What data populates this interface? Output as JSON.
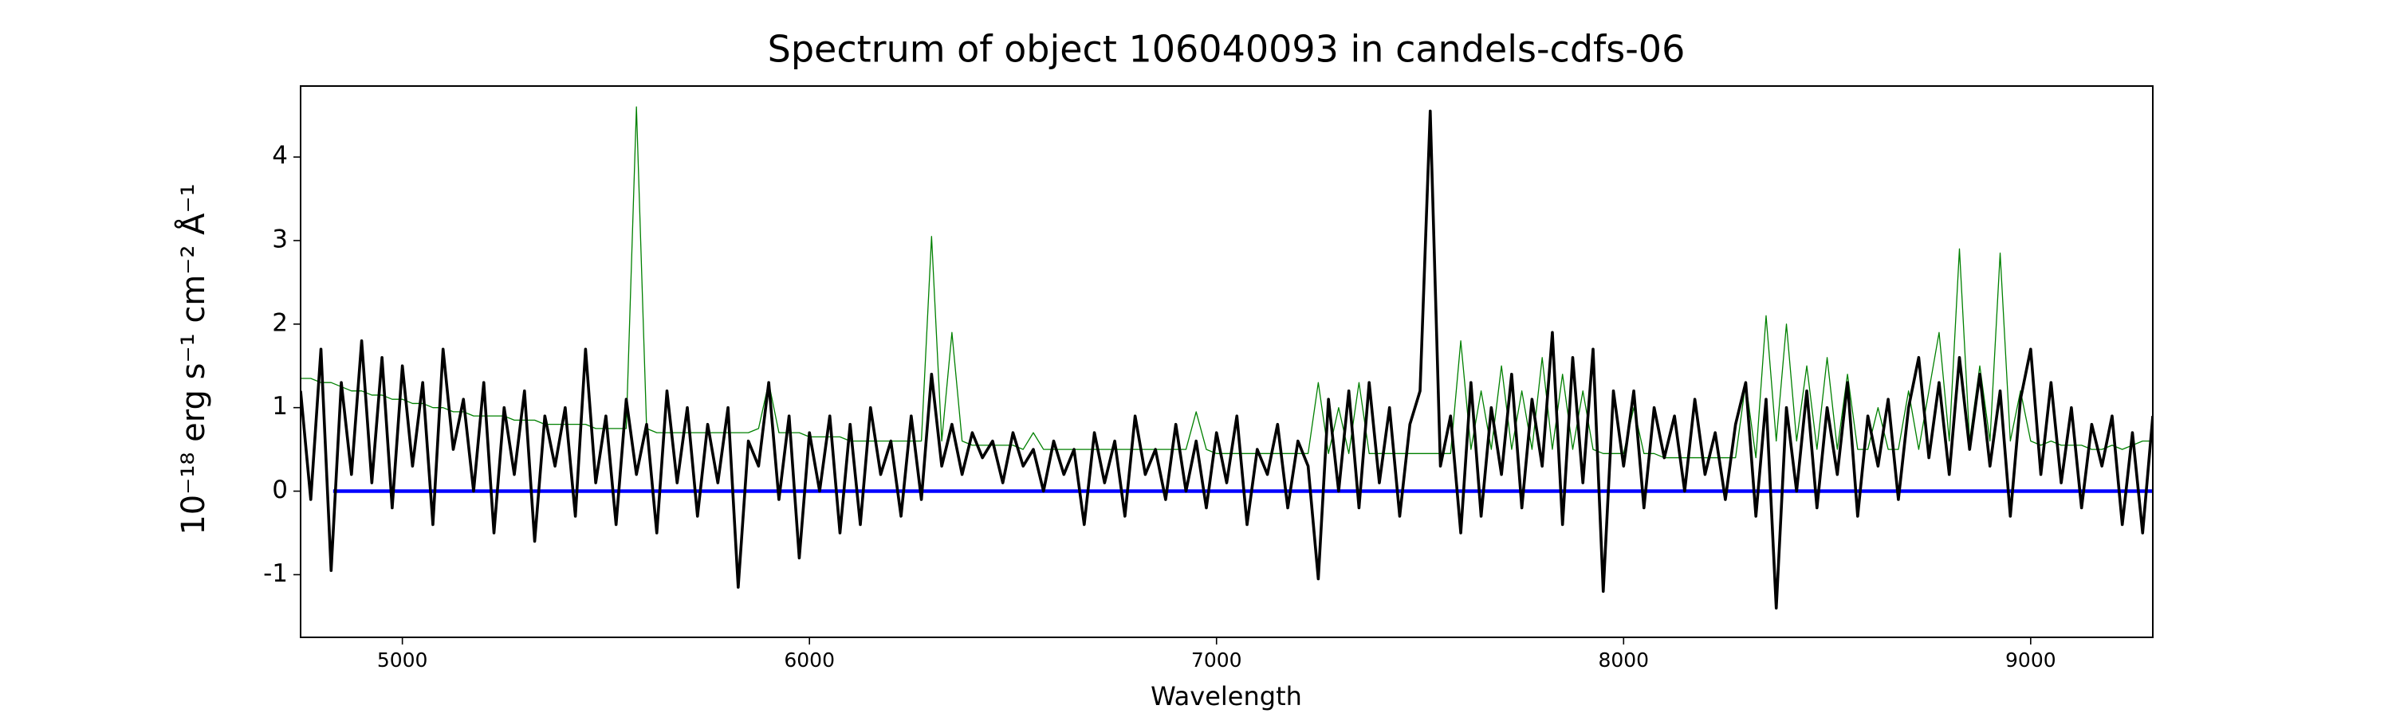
{
  "chart_data": {
    "type": "line",
    "title": "Spectrum of object 106040093 in candels-cdfs-06",
    "xlabel": "Wavelength",
    "ylabel": "10⁻¹⁸ erg s⁻¹ cm⁻² Å⁻¹",
    "xlim": [
      4750,
      9300
    ],
    "xticks": [
      5000,
      6000,
      7000,
      8000,
      9000
    ],
    "ylim": [
      -1.75,
      4.85
    ],
    "yticks": [
      -1,
      0,
      1,
      2,
      3,
      4
    ],
    "series": [
      {
        "color": "#008000",
        "x": [
          4750,
          4775,
          4800,
          4825,
          4850,
          4875,
          4900,
          4925,
          4950,
          4975,
          5000,
          5025,
          5050,
          5075,
          5100,
          5125,
          5150,
          5175,
          5200,
          5225,
          5250,
          5275,
          5300,
          5325,
          5350,
          5375,
          5400,
          5425,
          5450,
          5475,
          5500,
          5525,
          5550,
          5575,
          5600,
          5625,
          5650,
          5675,
          5700,
          5725,
          5750,
          5775,
          5800,
          5825,
          5850,
          5875,
          5900,
          5925,
          5950,
          5975,
          6000,
          6025,
          6050,
          6075,
          6100,
          6125,
          6150,
          6175,
          6200,
          6225,
          6250,
          6275,
          6300,
          6325,
          6350,
          6375,
          6400,
          6425,
          6450,
          6475,
          6500,
          6525,
          6550,
          6575,
          6600,
          6625,
          6650,
          6675,
          6700,
          6725,
          6750,
          6775,
          6800,
          6825,
          6850,
          6875,
          6900,
          6925,
          6950,
          6975,
          7000,
          7025,
          7050,
          7075,
          7100,
          7125,
          7150,
          7175,
          7200,
          7225,
          7250,
          7275,
          7300,
          7325,
          7350,
          7375,
          7400,
          7425,
          7450,
          7475,
          7500,
          7525,
          7550,
          7575,
          7600,
          7625,
          7650,
          7675,
          7700,
          7725,
          7750,
          7775,
          7800,
          7825,
          7850,
          7875,
          7900,
          7925,
          7950,
          7975,
          8000,
          8025,
          8050,
          8075,
          8100,
          8125,
          8150,
          8175,
          8200,
          8225,
          8250,
          8275,
          8300,
          8325,
          8350,
          8375,
          8400,
          8425,
          8450,
          8475,
          8500,
          8525,
          8550,
          8575,
          8600,
          8625,
          8650,
          8675,
          8700,
          8725,
          8750,
          8775,
          8800,
          8825,
          8850,
          8875,
          8900,
          8925,
          8950,
          8975,
          9000,
          9025,
          9050,
          9075,
          9100,
          9125,
          9150,
          9175,
          9200,
          9225,
          9250,
          9275,
          9300
        ],
        "values": [
          1.35,
          1.35,
          1.3,
          1.3,
          1.25,
          1.2,
          1.2,
          1.15,
          1.15,
          1.1,
          1.1,
          1.05,
          1.05,
          1.0,
          1.0,
          0.95,
          0.95,
          0.9,
          0.9,
          0.9,
          0.9,
          0.85,
          0.85,
          0.85,
          0.8,
          0.8,
          0.8,
          0.8,
          0.8,
          0.75,
          0.75,
          0.75,
          0.75,
          4.6,
          0.75,
          0.7,
          0.7,
          0.7,
          0.7,
          0.7,
          0.7,
          0.7,
          0.7,
          0.7,
          0.7,
          0.75,
          1.3,
          0.7,
          0.7,
          0.7,
          0.65,
          0.65,
          0.65,
          0.65,
          0.6,
          0.6,
          0.6,
          0.6,
          0.6,
          0.6,
          0.6,
          0.6,
          3.05,
          0.6,
          1.9,
          0.6,
          0.55,
          0.55,
          0.55,
          0.55,
          0.55,
          0.5,
          0.7,
          0.5,
          0.5,
          0.5,
          0.5,
          0.5,
          0.5,
          0.5,
          0.5,
          0.5,
          0.5,
          0.5,
          0.5,
          0.5,
          0.5,
          0.5,
          0.95,
          0.5,
          0.45,
          0.45,
          0.45,
          0.45,
          0.45,
          0.45,
          0.45,
          0.45,
          0.45,
          0.45,
          1.3,
          0.45,
          1.0,
          0.45,
          1.3,
          0.45,
          0.45,
          0.45,
          0.45,
          0.45,
          0.45,
          0.45,
          0.45,
          0.45,
          1.8,
          0.5,
          1.2,
          0.5,
          1.5,
          0.5,
          1.2,
          0.5,
          1.6,
          0.5,
          1.4,
          0.5,
          1.2,
          0.5,
          0.45,
          0.45,
          0.45,
          1.0,
          0.45,
          0.45,
          0.4,
          0.4,
          0.4,
          0.4,
          0.4,
          0.4,
          0.4,
          0.4,
          1.3,
          0.4,
          2.1,
          0.6,
          2.0,
          0.6,
          1.5,
          0.5,
          1.6,
          0.5,
          1.4,
          0.5,
          0.5,
          1.0,
          0.5,
          0.5,
          1.2,
          0.5,
          1.2,
          1.9,
          0.6,
          2.9,
          0.6,
          1.5,
          0.6,
          2.85,
          0.6,
          1.2,
          0.6,
          0.55,
          0.6,
          0.55,
          0.55,
          0.55,
          0.5,
          0.5,
          0.55,
          0.5,
          0.55,
          0.6,
          0.6
        ]
      },
      {
        "color": "#0000ff",
        "x": [
          4830,
          9300
        ],
        "values": [
          0,
          0
        ]
      },
      {
        "color": "#000000",
        "x": [
          4750,
          4775,
          4800,
          4825,
          4850,
          4875,
          4900,
          4925,
          4950,
          4975,
          5000,
          5025,
          5050,
          5075,
          5100,
          5125,
          5150,
          5175,
          5200,
          5225,
          5250,
          5275,
          5300,
          5325,
          5350,
          5375,
          5400,
          5425,
          5450,
          5475,
          5500,
          5525,
          5550,
          5575,
          5600,
          5625,
          5650,
          5675,
          5700,
          5725,
          5750,
          5775,
          5800,
          5825,
          5850,
          5875,
          5900,
          5925,
          5950,
          5975,
          6000,
          6025,
          6050,
          6075,
          6100,
          6125,
          6150,
          6175,
          6200,
          6225,
          6250,
          6275,
          6300,
          6325,
          6350,
          6375,
          6400,
          6425,
          6450,
          6475,
          6500,
          6525,
          6550,
          6575,
          6600,
          6625,
          6650,
          6675,
          6700,
          6725,
          6750,
          6775,
          6800,
          6825,
          6850,
          6875,
          6900,
          6925,
          6950,
          6975,
          7000,
          7025,
          7050,
          7075,
          7100,
          7125,
          7150,
          7175,
          7200,
          7225,
          7250,
          7275,
          7300,
          7325,
          7350,
          7375,
          7400,
          7425,
          7450,
          7475,
          7500,
          7525,
          7550,
          7575,
          7600,
          7625,
          7650,
          7675,
          7700,
          7725,
          7750,
          7775,
          7800,
          7825,
          7850,
          7875,
          7900,
          7925,
          7950,
          7975,
          8000,
          8025,
          8050,
          8075,
          8100,
          8125,
          8150,
          8175,
          8200,
          8225,
          8250,
          8275,
          8300,
          8325,
          8350,
          8375,
          8400,
          8425,
          8450,
          8475,
          8500,
          8525,
          8550,
          8575,
          8600,
          8625,
          8650,
          8675,
          8700,
          8725,
          8750,
          8775,
          8800,
          8825,
          8850,
          8875,
          8900,
          8925,
          8950,
          8975,
          9000,
          9025,
          9050,
          9075,
          9100,
          9125,
          9150,
          9175,
          9200,
          9225,
          9250,
          9275,
          9300
        ],
        "values": [
          1.2,
          -0.1,
          1.7,
          -0.95,
          1.3,
          0.2,
          1.8,
          0.1,
          1.6,
          -0.2,
          1.5,
          0.3,
          1.3,
          -0.4,
          1.7,
          0.5,
          1.1,
          0.0,
          1.3,
          -0.5,
          1.0,
          0.2,
          1.2,
          -0.6,
          0.9,
          0.3,
          1.0,
          -0.3,
          1.7,
          0.1,
          0.9,
          -0.4,
          1.1,
          0.2,
          0.8,
          -0.5,
          1.2,
          0.1,
          1.0,
          -0.3,
          0.8,
          0.1,
          1.0,
          -1.15,
          0.6,
          0.3,
          1.3,
          -0.1,
          0.9,
          -0.8,
          0.7,
          0.0,
          0.9,
          -0.5,
          0.8,
          -0.4,
          1.0,
          0.2,
          0.6,
          -0.3,
          0.9,
          -0.1,
          1.4,
          0.3,
          0.8,
          0.2,
          0.7,
          0.4,
          0.6,
          0.1,
          0.7,
          0.3,
          0.5,
          0.0,
          0.6,
          0.2,
          0.5,
          -0.4,
          0.7,
          0.1,
          0.6,
          -0.3,
          0.9,
          0.2,
          0.5,
          -0.1,
          0.8,
          0.0,
          0.6,
          -0.2,
          0.7,
          0.1,
          0.9,
          -0.4,
          0.5,
          0.2,
          0.8,
          -0.2,
          0.6,
          0.3,
          -1.05,
          1.1,
          0.0,
          1.2,
          -0.2,
          1.3,
          0.1,
          1.0,
          -0.3,
          0.8,
          1.2,
          4.55,
          0.3,
          0.9,
          -0.5,
          1.3,
          -0.3,
          1.0,
          0.2,
          1.4,
          -0.2,
          1.1,
          0.3,
          1.9,
          -0.4,
          1.6,
          0.1,
          1.7,
          -1.2,
          1.2,
          0.3,
          1.2,
          -0.2,
          1.0,
          0.4,
          0.9,
          0.0,
          1.1,
          0.2,
          0.7,
          -0.1,
          0.8,
          1.3,
          -0.3,
          1.1,
          -1.4,
          1.0,
          0.0,
          1.2,
          -0.2,
          1.0,
          0.2,
          1.3,
          -0.3,
          0.9,
          0.3,
          1.1,
          -0.1,
          1.0,
          1.6,
          0.4,
          1.3,
          0.2,
          1.6,
          0.5,
          1.4,
          0.3,
          1.2,
          -0.3,
          1.1,
          1.7,
          0.2,
          1.3,
          0.1,
          1.0,
          -0.2,
          0.8,
          0.3,
          0.9,
          -0.4,
          0.7,
          -0.5,
          0.9
        ]
      }
    ]
  }
}
